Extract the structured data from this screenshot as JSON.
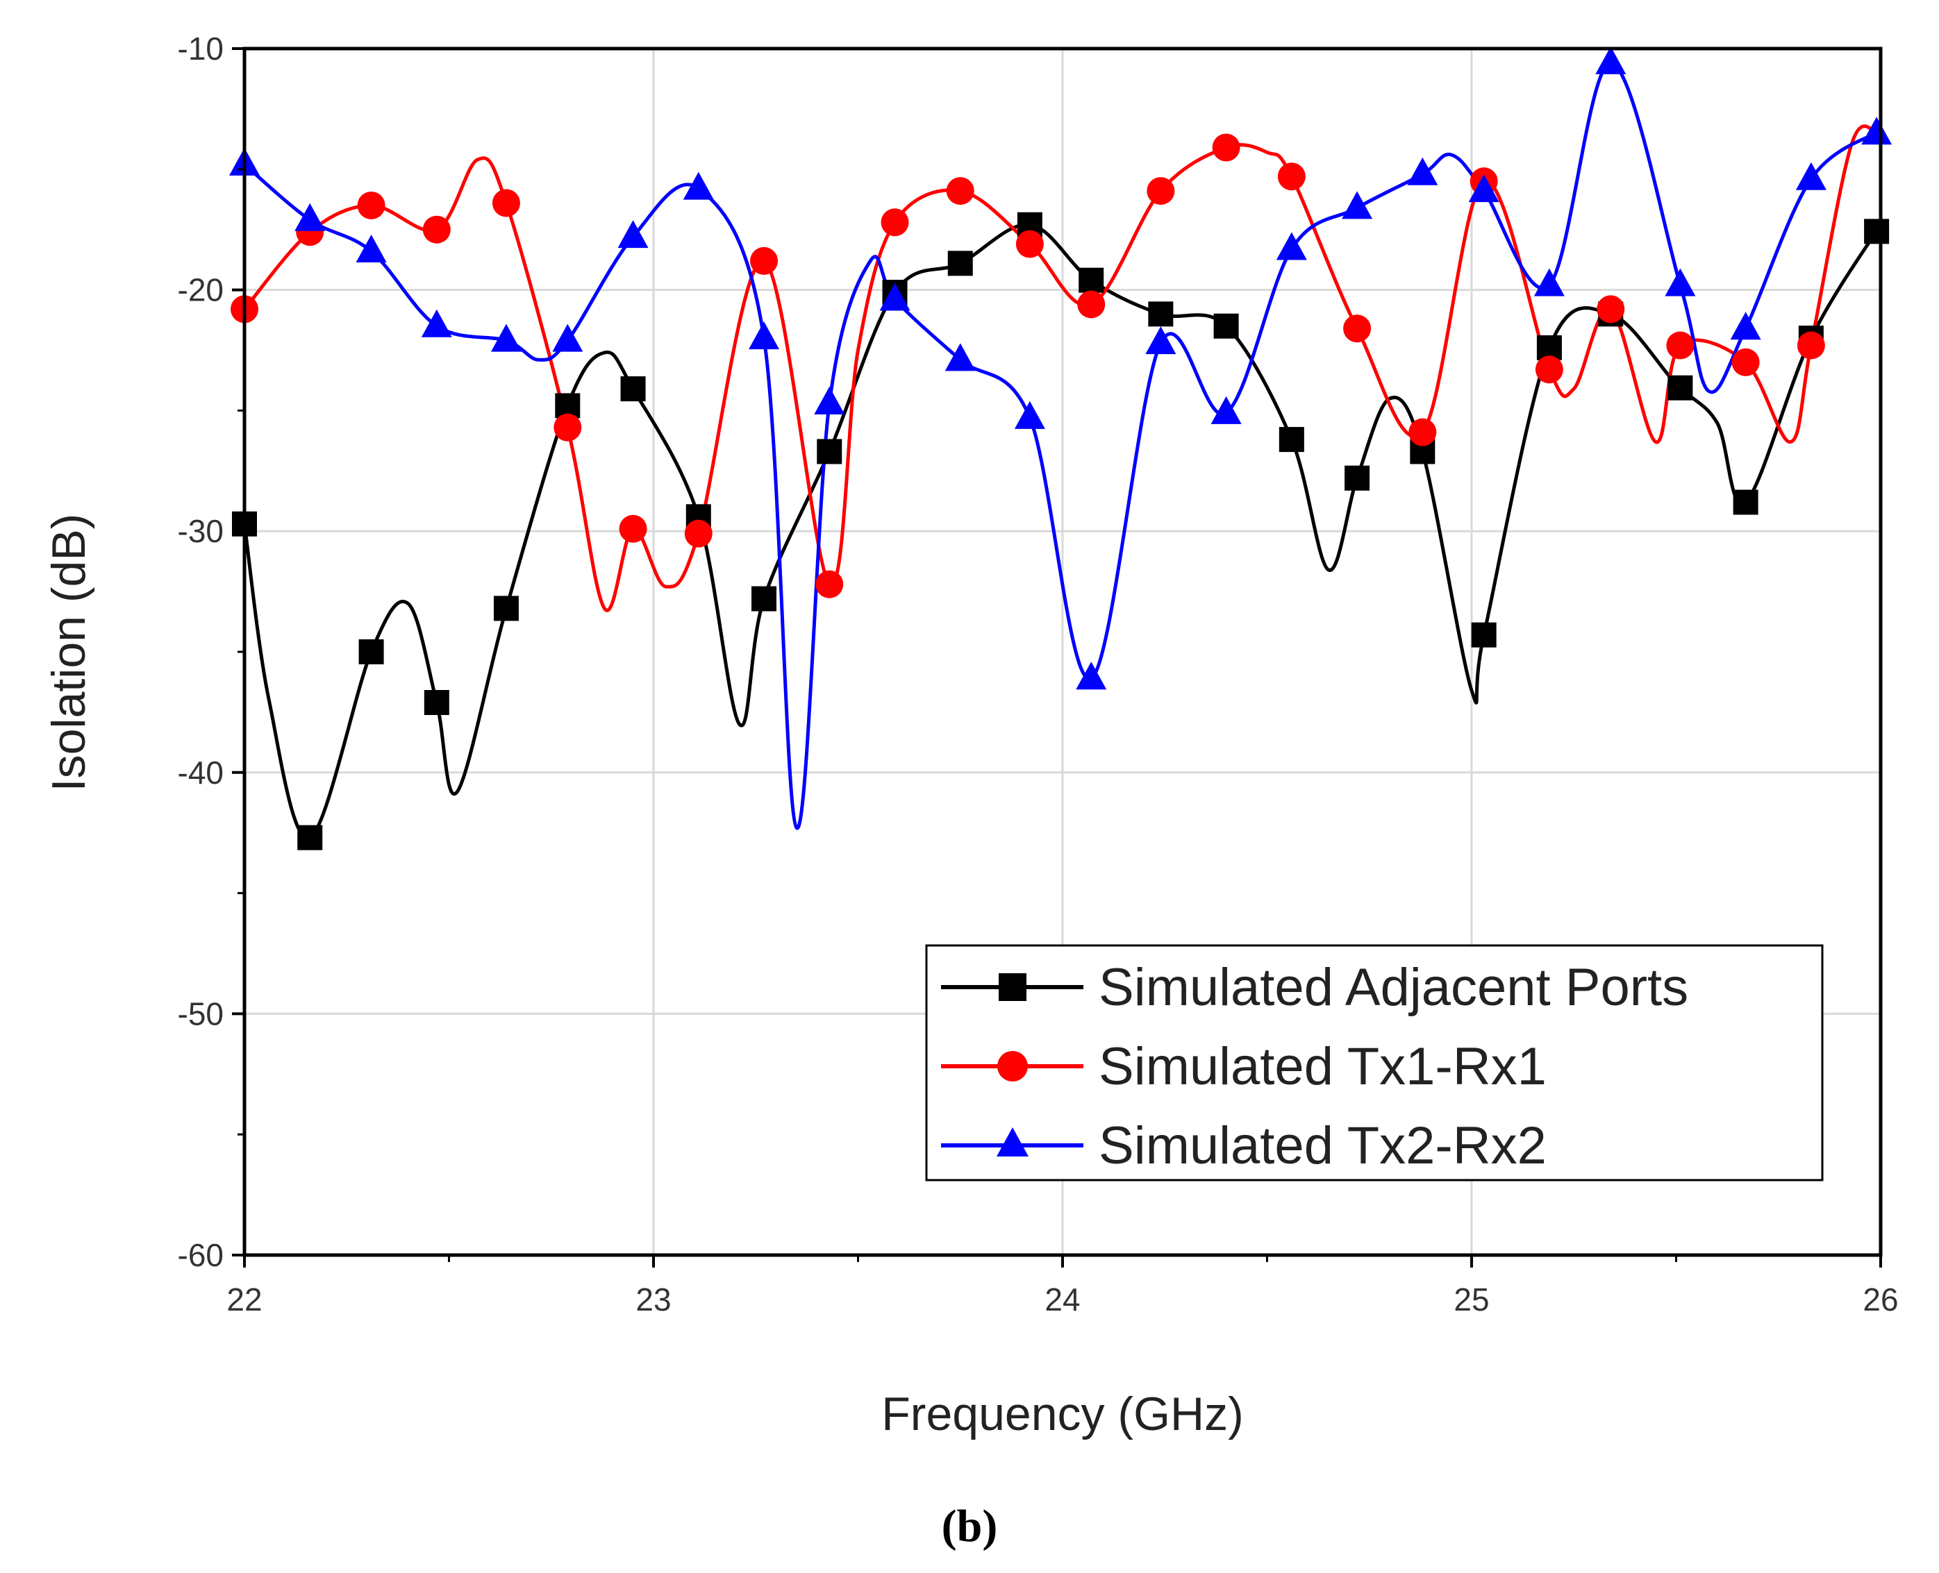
{
  "figure": {
    "caption": "(b)"
  },
  "colors": {
    "adjacent": "#000000",
    "tx1rx1": "#ff0000",
    "tx2rx2": "#0000ff",
    "grid": "#d9d9d9",
    "axis": "#000000"
  },
  "chart_data": {
    "type": "line",
    "title": "",
    "xlabel": "Frequency (GHz)",
    "ylabel": "Isolation (dB)",
    "xlim": [
      22,
      26
    ],
    "ylim": [
      -60,
      -10
    ],
    "xticks": [
      22,
      23,
      24,
      25,
      26
    ],
    "yticks": [
      -60,
      -50,
      -40,
      -30,
      -20,
      -10
    ],
    "xtick_labels": [
      "22",
      "23",
      "24",
      "25",
      "26"
    ],
    "ytick_labels": [
      "-60",
      "-50",
      "-40",
      "-30",
      "-20",
      "-10"
    ],
    "grid": true,
    "legend_position": "bottom-right",
    "series": [
      {
        "name": "Simulated Adjacent Ports",
        "color_key": "adjacent",
        "marker": "square",
        "x": [
          22.0,
          22.06,
          22.16,
          22.31,
          22.4,
          22.47,
          22.52,
          22.64,
          22.79,
          22.88,
          22.95,
          23.11,
          23.21,
          23.27,
          23.43,
          23.59,
          23.75,
          23.92,
          24.07,
          24.24,
          24.4,
          24.56,
          24.65,
          24.72,
          24.8,
          24.88,
          25.0,
          25.03,
          25.19,
          25.34,
          25.5,
          25.6,
          25.67,
          25.83,
          26.0
        ],
        "y": [
          -29.7,
          -37.0,
          -42.7,
          -35.0,
          -33.0,
          -37.1,
          -40.8,
          -33.2,
          -24.8,
          -22.6,
          -24.1,
          -29.4,
          -38.0,
          -32.8,
          -26.7,
          -20.1,
          -18.9,
          -17.3,
          -19.6,
          -21.0,
          -21.5,
          -26.2,
          -31.6,
          -27.8,
          -24.5,
          -26.7,
          -36.6,
          -34.3,
          -22.4,
          -21.0,
          -23.9,
          -25.5,
          -28.8,
          -22.0,
          -17.3
        ],
        "markers_x": [
          22.0,
          22.16,
          22.31,
          22.47,
          22.64,
          22.79,
          22.95,
          23.11,
          23.27,
          23.43,
          23.59,
          23.75,
          23.92,
          24.07,
          24.24,
          24.4,
          24.56,
          24.72,
          24.88,
          25.03,
          25.19,
          25.34,
          25.51,
          25.67,
          25.83,
          25.99
        ]
      },
      {
        "name": "Simulated Tx1-Rx1",
        "color_key": "tx1rx1",
        "marker": "circle",
        "x": [
          22.0,
          22.16,
          22.31,
          22.47,
          22.57,
          22.64,
          22.79,
          22.88,
          22.95,
          23.03,
          23.11,
          23.27,
          23.43,
          23.5,
          23.59,
          23.75,
          23.92,
          24.07,
          24.24,
          24.4,
          24.5,
          24.56,
          24.72,
          24.88,
          25.03,
          25.19,
          25.25,
          25.34,
          25.45,
          25.51,
          25.67,
          25.78,
          25.83,
          25.93,
          26.0
        ],
        "y": [
          -20.8,
          -17.6,
          -16.5,
          -17.5,
          -14.6,
          -16.4,
          -25.7,
          -33.2,
          -29.9,
          -32.3,
          -30.1,
          -18.8,
          -32.2,
          -22.5,
          -17.2,
          -15.9,
          -18.1,
          -20.6,
          -15.9,
          -14.1,
          -14.3,
          -15.3,
          -21.6,
          -25.9,
          -15.5,
          -23.3,
          -24.1,
          -20.8,
          -26.3,
          -22.3,
          -23.0,
          -26.3,
          -22.3,
          -13.9,
          -13.7
        ],
        "markers_x": [
          22.0,
          22.16,
          22.31,
          22.47,
          22.64,
          22.79,
          22.95,
          23.11,
          23.27,
          23.43,
          23.59,
          23.75,
          23.92,
          24.07,
          24.24,
          24.4,
          24.56,
          24.72,
          24.88,
          25.03,
          25.19,
          25.34,
          25.51,
          25.67,
          25.83
        ]
      },
      {
        "name": "Simulated Tx2-Rx2",
        "color_key": "tx2rx2",
        "marker": "triangle",
        "x": [
          22.0,
          22.16,
          22.31,
          22.47,
          22.64,
          22.72,
          22.79,
          22.95,
          23.11,
          23.27,
          23.35,
          23.43,
          23.53,
          23.59,
          23.75,
          23.92,
          24.07,
          24.24,
          24.4,
          24.56,
          24.72,
          24.88,
          24.95,
          25.03,
          25.19,
          25.34,
          25.51,
          25.58,
          25.67,
          25.83,
          26.0
        ],
        "y": [
          -14.8,
          -17.1,
          -18.4,
          -21.5,
          -22.1,
          -22.9,
          -22.1,
          -17.8,
          -15.8,
          -22.0,
          -42.3,
          -24.7,
          -18.8,
          -20.4,
          -22.9,
          -25.3,
          -36.1,
          -22.2,
          -25.1,
          -18.3,
          -16.6,
          -15.2,
          -14.4,
          -15.9,
          -19.8,
          -10.6,
          -19.8,
          -24.2,
          -21.6,
          -15.4,
          -13.4
        ],
        "markers_x": [
          22.0,
          22.16,
          22.31,
          22.47,
          22.64,
          22.79,
          22.95,
          23.11,
          23.27,
          23.43,
          23.59,
          23.75,
          23.92,
          24.07,
          24.24,
          24.4,
          24.56,
          24.72,
          24.88,
          25.03,
          25.19,
          25.34,
          25.51,
          25.67,
          25.83,
          25.99
        ]
      }
    ]
  }
}
